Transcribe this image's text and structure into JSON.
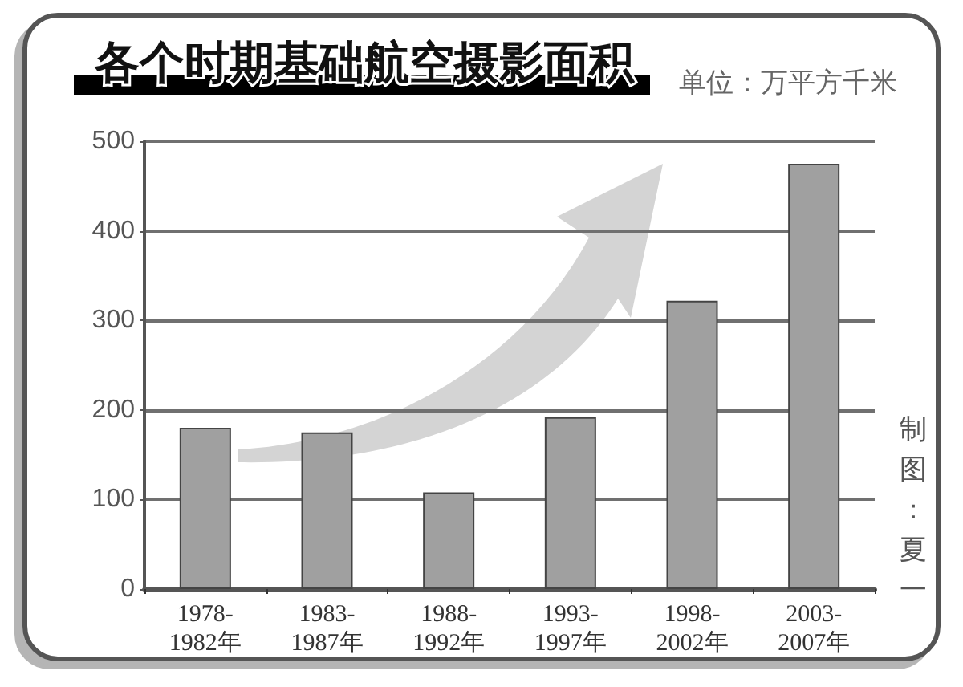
{
  "chart_data": {
    "type": "bar",
    "title": "各个时期基础航空摄影面积",
    "subtitle": "单位：万平方千米",
    "categories": [
      "1978-1982年",
      "1983-1987年",
      "1988-1992年",
      "1993-1997年",
      "1998-2002年",
      "2003-2007年"
    ],
    "values": [
      180,
      175,
      108,
      192,
      322,
      475
    ],
    "color": "#a0a0a0",
    "ylim": [
      0,
      500
    ],
    "yticks": [
      0,
      100,
      200,
      300,
      400,
      500
    ],
    "grid": "y",
    "annotations": [
      "制图：夏一"
    ]
  }
}
